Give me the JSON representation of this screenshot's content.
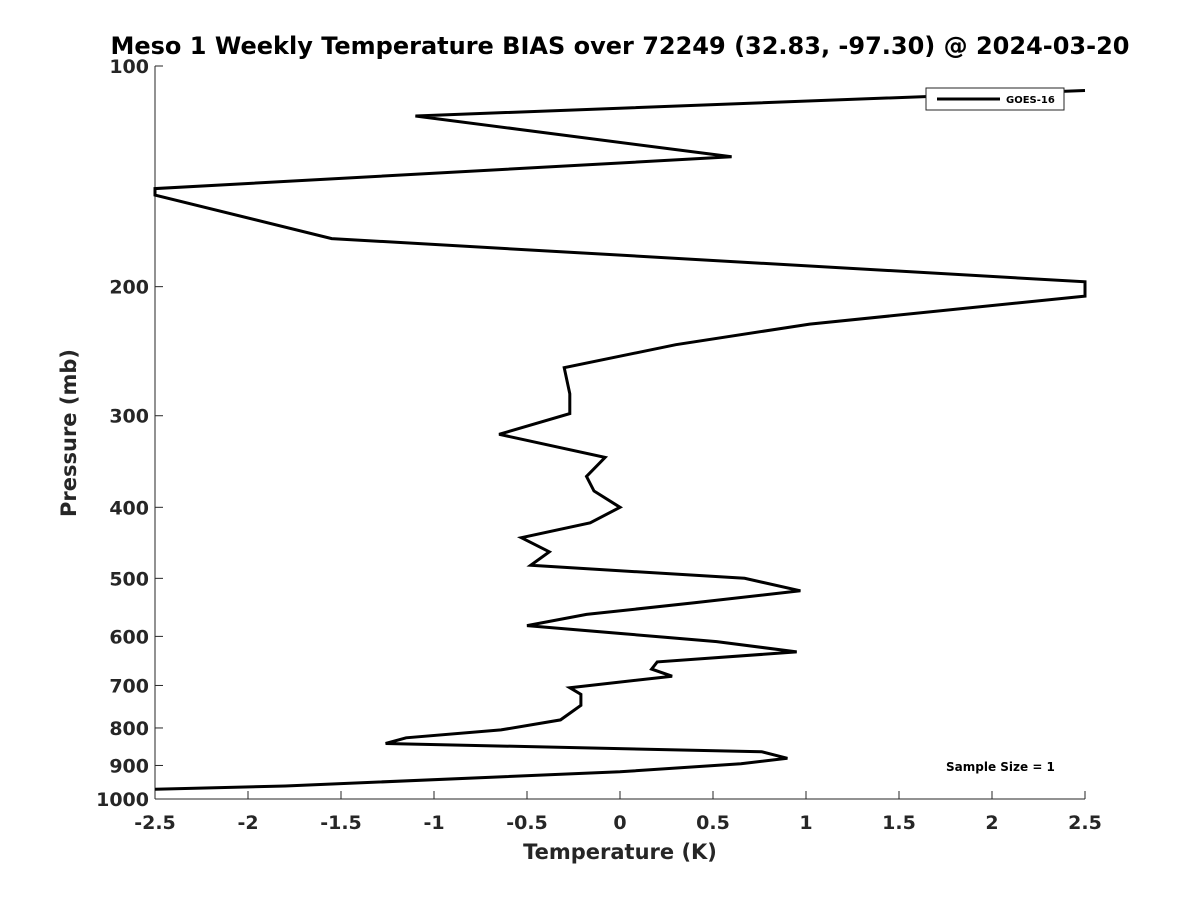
{
  "chart_data": {
    "type": "line",
    "title": "Meso 1 Weekly Temperature BIAS over 72249 (32.83, -97.30) @ 2024-03-20",
    "xlabel": "Temperature (K)",
    "ylabel": "Pressure (mb)",
    "xlim": [
      -2.5,
      2.5
    ],
    "ylim": [
      1000,
      100
    ],
    "yscale": "log-reversed",
    "xticks": [
      -2.5,
      -2,
      -1.5,
      -1,
      -0.5,
      0,
      0.5,
      1,
      1.5,
      2,
      2.5
    ],
    "xtick_labels": [
      "-2.5",
      "-2",
      "-1.5",
      "-1",
      "-0.5",
      "0",
      "0.5",
      "1",
      "1.5",
      "2",
      "2.5"
    ],
    "yticks": [
      100,
      200,
      300,
      400,
      500,
      600,
      700,
      800,
      900,
      1000
    ],
    "ytick_labels": [
      "100",
      "200",
      "300",
      "400",
      "500",
      "600",
      "700",
      "800",
      "900",
      "1000"
    ],
    "grid": false,
    "legend_position": "top-right",
    "annotation": "Sample Size = 1",
    "series": [
      {
        "name": "GOES-16",
        "color": "#000000",
        "points": [
          {
            "x": 2.5,
            "p": 108
          },
          {
            "x": -1.1,
            "p": 117
          },
          {
            "x": 0.6,
            "p": 133
          },
          {
            "x": -2.5,
            "p": 147
          },
          {
            "x": -2.5,
            "p": 150
          },
          {
            "x": -1.55,
            "p": 172
          },
          {
            "x": 2.5,
            "p": 197
          },
          {
            "x": 2.5,
            "p": 206
          },
          {
            "x": 1.02,
            "p": 225
          },
          {
            "x": 0.3,
            "p": 240
          },
          {
            "x": -0.3,
            "p": 258
          },
          {
            "x": -0.27,
            "p": 280
          },
          {
            "x": -0.27,
            "p": 298
          },
          {
            "x": -0.65,
            "p": 318
          },
          {
            "x": -0.08,
            "p": 342
          },
          {
            "x": -0.18,
            "p": 363
          },
          {
            "x": -0.14,
            "p": 380
          },
          {
            "x": 0.0,
            "p": 400
          },
          {
            "x": -0.16,
            "p": 420
          },
          {
            "x": -0.53,
            "p": 440
          },
          {
            "x": -0.38,
            "p": 460
          },
          {
            "x": -0.48,
            "p": 480
          },
          {
            "x": 0.67,
            "p": 500
          },
          {
            "x": 0.97,
            "p": 520
          },
          {
            "x": 0.4,
            "p": 540
          },
          {
            "x": -0.18,
            "p": 560
          },
          {
            "x": -0.5,
            "p": 580
          },
          {
            "x": 0.52,
            "p": 610
          },
          {
            "x": 0.95,
            "p": 630
          },
          {
            "x": 0.2,
            "p": 650
          },
          {
            "x": 0.17,
            "p": 665
          },
          {
            "x": 0.28,
            "p": 680
          },
          {
            "x": -0.27,
            "p": 705
          },
          {
            "x": -0.21,
            "p": 720
          },
          {
            "x": -0.21,
            "p": 745
          },
          {
            "x": -0.32,
            "p": 780
          },
          {
            "x": -0.64,
            "p": 805
          },
          {
            "x": -1.15,
            "p": 825
          },
          {
            "x": -1.26,
            "p": 840
          },
          {
            "x": 0.76,
            "p": 862
          },
          {
            "x": 0.9,
            "p": 880
          },
          {
            "x": 0.65,
            "p": 895
          },
          {
            "x": 0.0,
            "p": 918
          },
          {
            "x": -1.8,
            "p": 960
          },
          {
            "x": -2.5,
            "p": 970
          }
        ]
      }
    ]
  }
}
